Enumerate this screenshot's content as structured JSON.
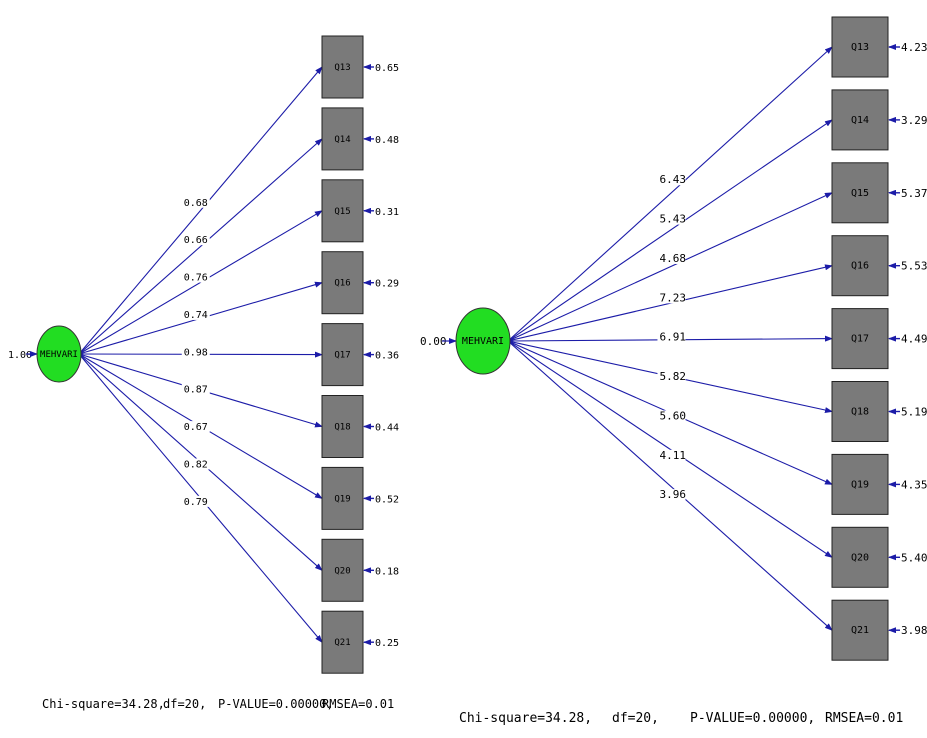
{
  "left_model": {
    "latent": {
      "label": "MEHVARI",
      "variance": "1.00",
      "color": "#22dd22"
    },
    "indicators": [
      {
        "label": "Q13",
        "loading": "0.68",
        "error": "0.65"
      },
      {
        "label": "Q14",
        "loading": "0.66",
        "error": "0.48"
      },
      {
        "label": "Q15",
        "loading": "0.76",
        "error": "0.31"
      },
      {
        "label": "Q16",
        "loading": "0.74",
        "error": "0.29"
      },
      {
        "label": "Q17",
        "loading": "0.98",
        "error": "0.36"
      },
      {
        "label": "Q18",
        "loading": "0.87",
        "error": "0.44"
      },
      {
        "label": "Q19",
        "loading": "0.67",
        "error": "0.52"
      },
      {
        "label": "Q20",
        "loading": "0.82",
        "error": "0.18"
      },
      {
        "label": "Q21",
        "loading": "0.79",
        "error": "0.25"
      }
    ],
    "footer": {
      "chi": "Chi-square=34.28,",
      "df": "df=20,",
      "p": "P-VALUE=0.00000,",
      "rmsea": "RMSEA=0.01"
    }
  },
  "right_model": {
    "latent": {
      "label": "MEHVARI",
      "variance": "0.00",
      "color": "#22dd22"
    },
    "indicators": [
      {
        "label": "Q13",
        "loading": "6.43",
        "error": "4.23"
      },
      {
        "label": "Q14",
        "loading": "5.43",
        "error": "3.29"
      },
      {
        "label": "Q15",
        "loading": "4.68",
        "error": "5.37"
      },
      {
        "label": "Q16",
        "loading": "7.23",
        "error": "5.53"
      },
      {
        "label": "Q17",
        "loading": "6.91",
        "error": "4.49"
      },
      {
        "label": "Q18",
        "loading": "5.82",
        "error": "5.19"
      },
      {
        "label": "Q19",
        "loading": "5.60",
        "error": "4.35"
      },
      {
        "label": "Q20",
        "loading": "4.11",
        "error": "5.40"
      },
      {
        "label": "Q21",
        "loading": "3.96",
        "error": "3.98"
      }
    ],
    "footer": {
      "chi": "Chi-square=34.28,",
      "df": "df=20,",
      "p": "P-VALUE=0.00000,",
      "rmsea": "RMSEA=0.01"
    }
  },
  "colors": {
    "path": "#1c1ca8",
    "box": "#7a7a7a",
    "box_border": "#222222"
  }
}
